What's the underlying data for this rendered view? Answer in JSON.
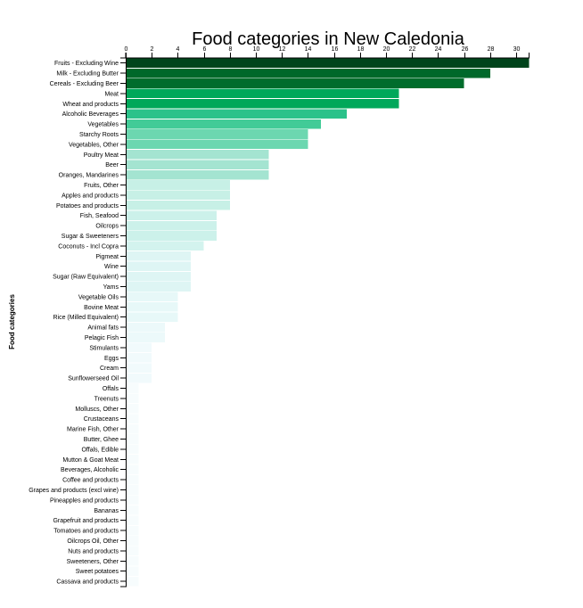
{
  "chart_data": {
    "type": "bar",
    "orientation": "horizontal",
    "title": "Food categories in New Caledonia",
    "ylabel": "Food categories",
    "xlabel": "",
    "xlim": [
      0,
      31
    ],
    "x_ticks": [
      0,
      2,
      4,
      6,
      8,
      10,
      12,
      14,
      16,
      18,
      20,
      22,
      24,
      26,
      28,
      30
    ],
    "categories": [
      "Fruits - Excluding Wine",
      "Milk - Excluding Butter",
      "Cereals - Excluding Beer",
      "Meat",
      "Wheat and products",
      "Alcoholic Beverages",
      "Vegetables",
      "Starchy Roots",
      "Vegetables, Other",
      "Poultry Meat",
      "Beer",
      "Oranges, Mandarines",
      "Fruits, Other",
      "Apples and products",
      "Potatoes and products",
      "Fish, Seafood",
      "Oilcrops",
      "Sugar & Sweeteners",
      "Coconuts - Incl Copra",
      "Pigmeat",
      "Wine",
      "Sugar (Raw Equivalent)",
      "Yams",
      "Vegetable Oils",
      "Bovine Meat",
      "Rice (Milled Equivalent)",
      "Animal fats",
      "Pelagic Fish",
      "Stimulants",
      "Eggs",
      "Cream",
      "Sunflowerseed Oil",
      "Offals",
      "Treenuts",
      "Molluscs, Other",
      "Crustaceans",
      "Marine Fish, Other",
      "Butter, Ghee",
      "Offals, Edible",
      "Mutton & Goat Meat",
      "Beverages, Alcoholic",
      "Coffee and products",
      "Grapes and products (excl wine)",
      "Pineapples and products",
      "Bananas",
      "Grapefruit and products",
      "Tomatoes and products",
      "Oilcrops Oil, Other",
      "Nuts and products",
      "Sweeteners, Other",
      "Sweet potatoes",
      "Cassava and products"
    ],
    "values": [
      31,
      28,
      26,
      21,
      21,
      17,
      15,
      14,
      14,
      11,
      11,
      11,
      8,
      8,
      8,
      7,
      7,
      7,
      6,
      5,
      5,
      5,
      5,
      4,
      4,
      4,
      3,
      3,
      2,
      2,
      2,
      2,
      1,
      1,
      1,
      1,
      1,
      1,
      1,
      1,
      1,
      1,
      1,
      1,
      1,
      1,
      1,
      1,
      1,
      1,
      1,
      1
    ],
    "colors": {
      "31": "#00441b",
      "28": "#00682a",
      "26": "#006d2c",
      "21": "#00a85a",
      "17": "#2bc28a",
      "15": "#42cb97",
      "14": "#6cd7b0",
      "11": "#a4e4d1",
      "8": "#c7f0e6",
      "7": "#ccf1ea",
      "6": "#d3f3ee",
      "5": "#def5f4",
      "4": "#e7f8f8",
      "3": "#ecf9fa",
      "2": "#f1fafc",
      "1": "#f7fcfd"
    }
  }
}
